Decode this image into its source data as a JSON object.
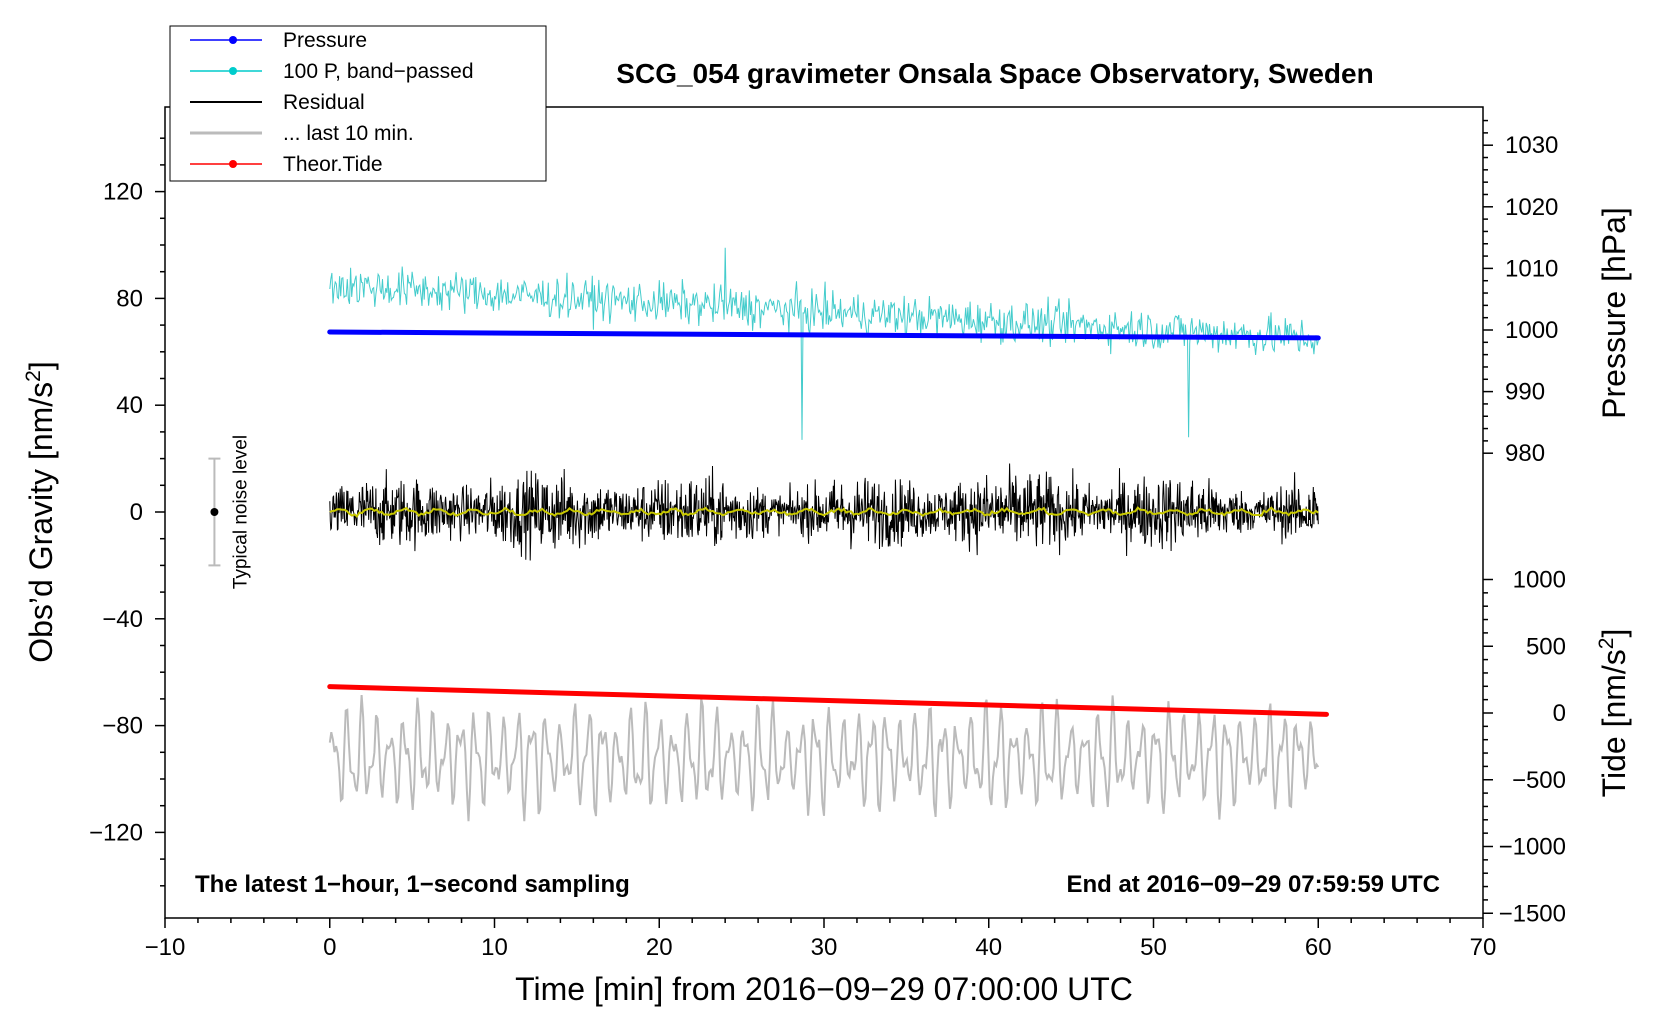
{
  "chart_data": {
    "type": "line",
    "title": "SCG_054 gravimeter Onsala Space Observatory, Sweden",
    "xlabel": "Time [min] from 2016−09−29 07:00:00 UTC",
    "ylabel_left_main": "Obs’d Gravity [nm/s",
    "ylabel_left_sup": "2",
    "ylabel_left_end": "]",
    "ylabel_right_top": "Pressure [hPa]",
    "ylabel_right_bottom_main": "Tide [nm/s",
    "ylabel_right_bottom_sup": "2",
    "ylabel_right_bottom_end": "]",
    "xlim": [
      -10,
      70
    ],
    "ylim": [
      -150,
      150
    ],
    "x_ticks": [
      -10,
      0,
      10,
      20,
      30,
      40,
      50,
      60,
      70
    ],
    "x_tick_labels": [
      "−10",
      "0",
      "10",
      "20",
      "30",
      "40",
      "50",
      "60",
      "70"
    ],
    "y_ticks": [
      -120,
      -80,
      -40,
      0,
      40,
      80,
      120
    ],
    "y_tick_labels": [
      "−120",
      "−80",
      "−40",
      "0",
      "40",
      "80",
      "120"
    ],
    "pressure_axis": {
      "range_hPa": [
        970,
        1036
      ],
      "ticks": [
        980,
        990,
        1000,
        1010,
        1020,
        1030
      ],
      "tick_labels": [
        "980",
        "990",
        "1000",
        "1010",
        "1020",
        "1030"
      ]
    },
    "tide_axis": {
      "range": [
        -1500,
        1000
      ],
      "ticks": [
        -1500,
        -1000,
        -500,
        0,
        500,
        1000
      ],
      "tick_labels": [
        "−1500",
        "−1000",
        "−500",
        "0",
        "500",
        "1000"
      ]
    },
    "legend": {
      "position": "top-left",
      "entries": [
        {
          "label": "Pressure",
          "color": "#0000ff",
          "marker": true
        },
        {
          "label": "100 P, band−passed",
          "color": "#00cccc",
          "marker": true
        },
        {
          "label": "Residual",
          "color": "#000000",
          "marker": false
        },
        {
          "label": "... last 10 min.",
          "color": "#bbbbbb",
          "marker": false
        },
        {
          "label": "Theor.Tide",
          "color": "#ff0000",
          "marker": true
        }
      ]
    },
    "series": [
      {
        "name": "Pressure",
        "color": "#0000ff",
        "axis": "pressure_hPa",
        "x": [
          0,
          60
        ],
        "values": [
          1000.0,
          999.2
        ]
      },
      {
        "name": "100 P, band−passed",
        "color": "#44cccc",
        "axis": "gravity",
        "x_range": [
          0,
          60
        ],
        "center_start": 85,
        "center_end": 65,
        "amplitude": 10
      },
      {
        "name": "Residual",
        "color": "#000000",
        "axis": "gravity",
        "x_range": [
          0,
          60
        ],
        "center": 0,
        "amplitude": 14
      },
      {
        "name": "Residual smoothed",
        "color": "#c8c800",
        "axis": "gravity",
        "x_range": [
          0,
          60
        ],
        "center": 0,
        "amplitude": 1.5
      },
      {
        "name": "... last 10 min.",
        "color": "#bbbbbb",
        "axis": "gravity",
        "x_range": [
          0,
          60
        ],
        "center": -92,
        "amplitude": 18
      },
      {
        "name": "Theor.Tide",
        "color": "#ff0000",
        "axis": "tide",
        "x": [
          0,
          60.5
        ],
        "values": [
          100,
          -100
        ]
      }
    ],
    "noise_level": {
      "label": "Typical noise level",
      "x": -7,
      "center": 0,
      "half_range": 20,
      "color": "#bbbbbb"
    },
    "annotations": {
      "left_note": "The latest 1−hour, 1−second sampling",
      "right_note": "End at 2016−09−29 07:59:59 UTC"
    }
  }
}
